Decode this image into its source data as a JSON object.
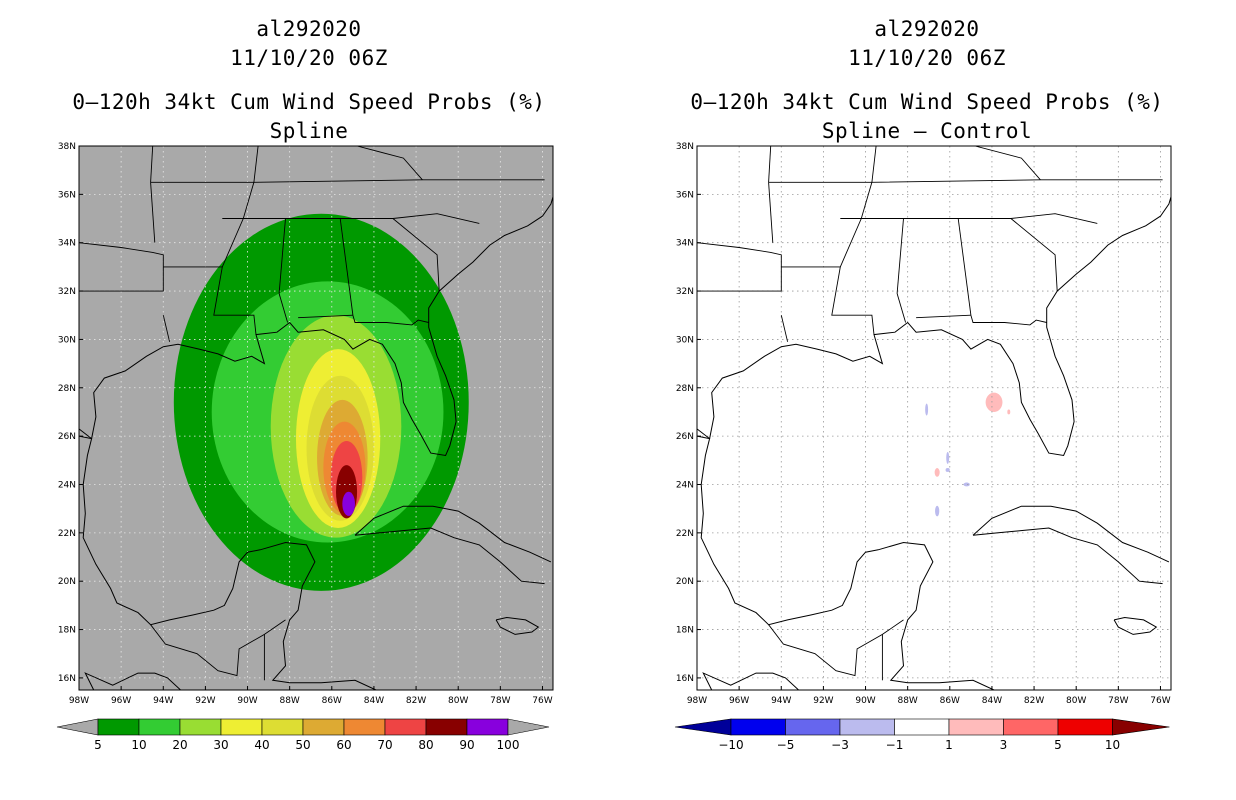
{
  "left_panel": {
    "storm_id": "al292020",
    "datetime": "11/10/20 06Z",
    "product": "0–120h 34kt Cum Wind Speed Probs (%)",
    "variant": "Spline",
    "background_color": "#a9a9a9",
    "colorbar": {
      "labels": [
        "5",
        "10",
        "20",
        "30",
        "40",
        "50",
        "60",
        "70",
        "80",
        "90",
        "100"
      ],
      "colors": [
        "#009900",
        "#33cc33",
        "#99dd33",
        "#eeee33",
        "#dddd33",
        "#ddaa33",
        "#ee8833",
        "#ee4444",
        "#880000",
        "#8800dd"
      ]
    }
  },
  "right_panel": {
    "storm_id": "al292020",
    "datetime": "11/10/20 06Z",
    "product": "0–120h 34kt Cum Wind Speed Probs (%)",
    "variant": "Spline – Control",
    "background_color": "#ffffff",
    "colorbar": {
      "labels": [
        "−10",
        "−5",
        "−3",
        "−1",
        "1",
        "3",
        "5",
        "10"
      ],
      "colors": [
        "#000099",
        "#0000ee",
        "#6666ee",
        "#bbbbee",
        "#ffffff",
        "#ffbbbb",
        "#ff6666",
        "#ee0000",
        "#880000"
      ]
    }
  },
  "axes": {
    "lat_labels": [
      "38N",
      "36N",
      "34N",
      "32N",
      "30N",
      "28N",
      "26N",
      "24N",
      "22N",
      "20N",
      "18N",
      "16N"
    ],
    "lon_labels": [
      "98W",
      "96W",
      "94W",
      "92W",
      "90W",
      "88W",
      "86W",
      "84W",
      "82W",
      "80W",
      "78W",
      "76W"
    ]
  },
  "map_data": {
    "extent": {
      "lon_min": -98,
      "lon_max": -75.5,
      "lat_min": 15.5,
      "lat_max": 38
    },
    "prob_contours": [
      {
        "level": 5,
        "center": [
          -86.5,
          27.4
        ],
        "radii": [
          7.0,
          7.8
        ]
      },
      {
        "level": 10,
        "center": [
          -86.2,
          27.0
        ],
        "radii": [
          5.5,
          5.4
        ]
      },
      {
        "level": 20,
        "center": [
          -85.8,
          26.4
        ],
        "radii": [
          3.1,
          4.6
        ]
      },
      {
        "level": 30,
        "center": [
          -85.7,
          25.9
        ],
        "radii": [
          2.0,
          3.7
        ]
      },
      {
        "level": 40,
        "center": [
          -85.6,
          25.5
        ],
        "radii": [
          1.6,
          3.0
        ]
      },
      {
        "level": 50,
        "center": [
          -85.5,
          25.1
        ],
        "radii": [
          1.2,
          2.4
        ]
      },
      {
        "level": 60,
        "center": [
          -85.4,
          24.7
        ],
        "radii": [
          1.0,
          1.9
        ]
      },
      {
        "level": 70,
        "center": [
          -85.3,
          24.3
        ],
        "radii": [
          0.75,
          1.5
        ]
      },
      {
        "level": 80,
        "center": [
          -85.3,
          23.7
        ],
        "radii": [
          0.5,
          1.1
        ]
      },
      {
        "level": 90,
        "center": [
          -85.2,
          23.2
        ],
        "radii": [
          0.3,
          0.5
        ]
      }
    ],
    "diff_blobs": [
      {
        "value": 2,
        "center": [
          -83.9,
          27.4
        ],
        "radii": [
          0.4,
          0.4
        ]
      },
      {
        "value": 2,
        "center": [
          -86.6,
          24.5
        ],
        "radii": [
          0.12,
          0.18
        ]
      },
      {
        "value": 2,
        "center": [
          -83.2,
          27.0
        ],
        "radii": [
          0.07,
          0.1
        ]
      },
      {
        "value": -2,
        "center": [
          -87.1,
          27.1
        ],
        "radii": [
          0.07,
          0.25
        ]
      },
      {
        "value": -2,
        "center": [
          -86.1,
          25.1
        ],
        "radii": [
          0.07,
          0.25
        ]
      },
      {
        "value": -2,
        "center": [
          -86.6,
          22.9
        ],
        "radii": [
          0.1,
          0.22
        ]
      },
      {
        "value": -2,
        "center": [
          -85.2,
          24.0
        ],
        "radii": [
          0.15,
          0.08
        ]
      },
      {
        "value": -2,
        "center": [
          -86.1,
          24.6
        ],
        "radii": [
          0.1,
          0.08
        ]
      }
    ],
    "coastlines": [
      [
        [
          -97.3,
          15.5
        ],
        [
          -97.7,
          16.2
        ],
        [
          -96.4,
          15.7
        ],
        [
          -95.2,
          16.2
        ],
        [
          -94.4,
          16.2
        ],
        [
          -93.8,
          16.0
        ],
        [
          -92.8,
          15.2
        ]
      ],
      [
        [
          -98,
          26.0
        ],
        [
          -97.4,
          25.9
        ],
        [
          -97.6,
          25.2
        ],
        [
          -97.8,
          24.0
        ],
        [
          -97.7,
          22.8
        ],
        [
          -97.8,
          21.8
        ],
        [
          -97.2,
          20.7
        ],
        [
          -96.5,
          19.7
        ],
        [
          -96.2,
          19.1
        ],
        [
          -95.2,
          18.7
        ],
        [
          -94.6,
          18.2
        ],
        [
          -93.7,
          18.4
        ],
        [
          -92.6,
          18.6
        ],
        [
          -91.6,
          18.8
        ],
        [
          -91.1,
          19.0
        ],
        [
          -90.7,
          19.7
        ],
        [
          -90.4,
          20.8
        ],
        [
          -90.0,
          21.2
        ],
        [
          -89.4,
          21.3
        ],
        [
          -88.2,
          21.6
        ],
        [
          -87.2,
          21.5
        ],
        [
          -86.8,
          20.8
        ],
        [
          -87.4,
          19.8
        ],
        [
          -87.6,
          18.8
        ],
        [
          -88.0,
          18.4
        ],
        [
          -88.3,
          17.5
        ],
        [
          -88.2,
          16.5
        ],
        [
          -88.8,
          15.9
        ],
        [
          -88.0,
          15.8
        ],
        [
          -86.5,
          15.8
        ],
        [
          -84.9,
          15.9
        ],
        [
          -83.9,
          15.5
        ]
      ],
      [
        [
          -97.4,
          25.9
        ],
        [
          -97.2,
          26.8
        ],
        [
          -97.3,
          27.8
        ],
        [
          -96.8,
          28.4
        ],
        [
          -95.8,
          28.7
        ],
        [
          -94.8,
          29.3
        ],
        [
          -94.0,
          29.7
        ],
        [
          -93.3,
          29.8
        ],
        [
          -92.3,
          29.6
        ],
        [
          -91.4,
          29.4
        ],
        [
          -90.6,
          29.1
        ],
        [
          -89.8,
          29.3
        ],
        [
          -89.2,
          29.0
        ],
        [
          -89.4,
          29.6
        ],
        [
          -89.6,
          30.2
        ],
        [
          -88.6,
          30.3
        ],
        [
          -88.0,
          30.7
        ],
        [
          -87.6,
          30.3
        ],
        [
          -86.4,
          30.4
        ],
        [
          -85.4,
          30.0
        ],
        [
          -85.0,
          29.6
        ],
        [
          -84.2,
          30.0
        ],
        [
          -83.6,
          29.8
        ],
        [
          -83.0,
          29.0
        ],
        [
          -82.7,
          28.2
        ],
        [
          -82.6,
          27.4
        ],
        [
          -82.2,
          26.7
        ],
        [
          -81.8,
          26.1
        ],
        [
          -81.3,
          25.3
        ],
        [
          -80.6,
          25.2
        ],
        [
          -80.4,
          25.6
        ],
        [
          -80.1,
          26.6
        ],
        [
          -80.2,
          27.5
        ],
        [
          -80.6,
          28.5
        ],
        [
          -81.0,
          29.3
        ],
        [
          -81.4,
          30.5
        ],
        [
          -81.4,
          31.3
        ],
        [
          -80.9,
          32.0
        ],
        [
          -80.0,
          32.7
        ],
        [
          -79.3,
          33.2
        ],
        [
          -78.5,
          33.9
        ],
        [
          -77.8,
          34.3
        ],
        [
          -76.7,
          34.7
        ],
        [
          -76.0,
          35.1
        ],
        [
          -75.6,
          35.6
        ],
        [
          -75.5,
          35.9
        ]
      ],
      [
        [
          -84.9,
          21.9
        ],
        [
          -84.0,
          22.6
        ],
        [
          -82.6,
          23.1
        ],
        [
          -81.2,
          23.1
        ],
        [
          -80.0,
          22.9
        ],
        [
          -79.0,
          22.4
        ],
        [
          -77.8,
          21.6
        ],
        [
          -76.6,
          21.2
        ],
        [
          -75.6,
          20.8
        ]
      ],
      [
        [
          -84.9,
          21.9
        ],
        [
          -83.7,
          22.0
        ],
        [
          -82.5,
          22.1
        ],
        [
          -81.3,
          22.2
        ],
        [
          -80.2,
          21.8
        ],
        [
          -79.0,
          21.5
        ],
        [
          -78.0,
          20.8
        ],
        [
          -77.0,
          20.0
        ],
        [
          -75.9,
          19.9
        ]
      ],
      [
        [
          -78.2,
          18.4
        ],
        [
          -77.7,
          18.5
        ],
        [
          -76.8,
          18.4
        ],
        [
          -76.2,
          18.1
        ],
        [
          -76.5,
          17.9
        ],
        [
          -77.3,
          17.8
        ],
        [
          -78.0,
          18.1
        ],
        [
          -78.2,
          18.4
        ]
      ]
    ],
    "borders": [
      [
        [
          -94.6,
          18.2
        ],
        [
          -93.9,
          17.4
        ],
        [
          -92.4,
          17.0
        ],
        [
          -91.4,
          16.3
        ],
        [
          -90.5,
          16.1
        ],
        [
          -90.4,
          17.2
        ],
        [
          -89.2,
          17.8
        ],
        [
          -88.2,
          18.4
        ]
      ],
      [
        [
          -89.2,
          17.8
        ],
        [
          -89.2,
          15.9
        ]
      ],
      [
        [
          -98,
          26.3
        ],
        [
          -97.4,
          25.9
        ]
      ],
      [
        [
          -98,
          32.0
        ],
        [
          -94.0,
          32.0
        ],
        [
          -94.0,
          33.5
        ],
        [
          -94.5,
          33.6
        ],
        [
          -96.0,
          33.8
        ],
        [
          -98,
          34.0
        ]
      ],
      [
        [
          -94.0,
          31.0
        ],
        [
          -93.7,
          29.9
        ]
      ],
      [
        [
          -94.0,
          33.0
        ],
        [
          -91.2,
          33.0
        ],
        [
          -91.6,
          31.0
        ],
        [
          -89.7,
          31.0
        ],
        [
          -89.6,
          30.2
        ]
      ],
      [
        [
          -91.2,
          33.0
        ],
        [
          -90.2,
          35.0
        ],
        [
          -89.7,
          36.5
        ],
        [
          -89.5,
          38.0
        ]
      ],
      [
        [
          -91.2,
          35.0
        ],
        [
          -90.2,
          35.0
        ],
        [
          -88.2,
          35.0
        ],
        [
          -85.6,
          35.0
        ],
        [
          -83.1,
          35.0
        ],
        [
          -81.0,
          35.2
        ],
        [
          -79.0,
          34.8
        ]
      ],
      [
        [
          -88.5,
          31.9
        ],
        [
          -88.2,
          35.0
        ]
      ],
      [
        [
          -88.1,
          30.7
        ],
        [
          -88.5,
          31.9
        ]
      ],
      [
        [
          -87.6,
          30.9
        ],
        [
          -85.0,
          31.0
        ]
      ],
      [
        [
          -85.0,
          31.0
        ],
        [
          -85.6,
          35.0
        ]
      ],
      [
        [
          -85.0,
          31.0
        ],
        [
          -84.9,
          30.7
        ],
        [
          -83.4,
          30.7
        ],
        [
          -82.2,
          30.6
        ],
        [
          -81.9,
          30.8
        ],
        [
          -81.4,
          30.7
        ]
      ],
      [
        [
          -83.1,
          35.0
        ],
        [
          -81.0,
          33.5
        ],
        [
          -80.9,
          32.0
        ]
      ],
      [
        [
          -94.6,
          36.5
        ],
        [
          -89.7,
          36.5
        ],
        [
          -81.7,
          36.6
        ],
        [
          -75.9,
          36.6
        ]
      ],
      [
        [
          -94.6,
          36.5
        ],
        [
          -94.5,
          38.0
        ]
      ],
      [
        [
          -84.8,
          38.0
        ],
        [
          -82.6,
          37.5
        ],
        [
          -81.7,
          36.6
        ]
      ],
      [
        [
          -94.4,
          34.0
        ],
        [
          -94.6,
          36.5
        ]
      ]
    ]
  }
}
